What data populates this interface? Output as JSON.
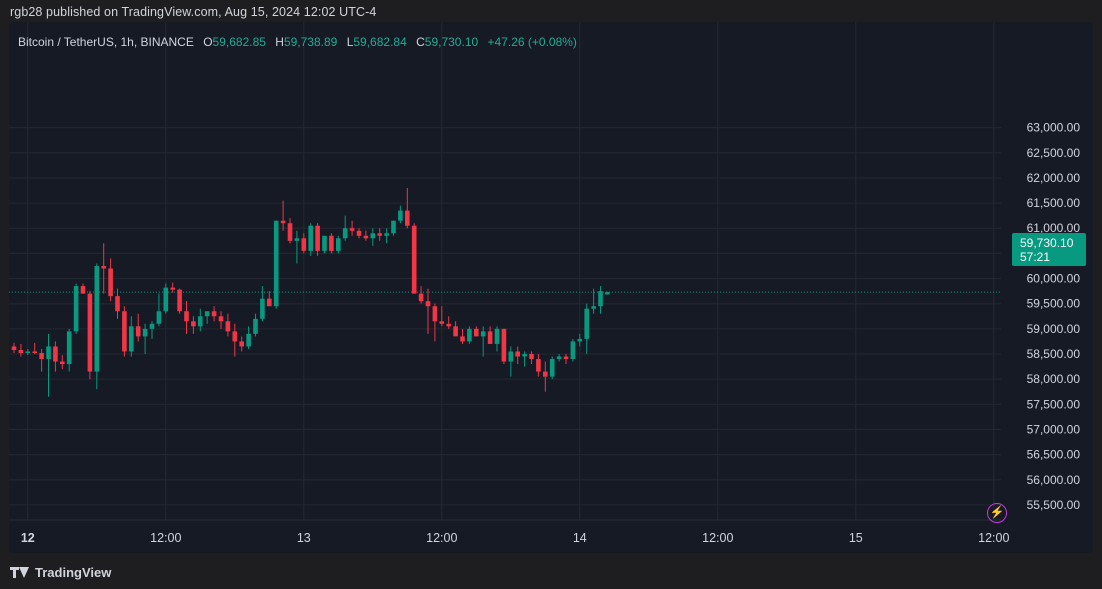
{
  "header": {
    "published": "rgb28 published on TradingView.com, Aug 15, 2024 12:02 UTC-4"
  },
  "legend": {
    "symbol": "Bitcoin / TetherUS, 1h, BINANCE",
    "o_key": "O",
    "o_val": "59,682.85",
    "h_key": "H",
    "h_val": "59,738.89",
    "l_key": "L",
    "l_val": "59,682.84",
    "c_key": "C",
    "c_val": "59,730.10",
    "change": "+47.26 (+0.08%)"
  },
  "price_tag": {
    "price": "59,730.10",
    "countdown": "57:21"
  },
  "footer": {
    "brand": "TradingView"
  },
  "colors": {
    "up": "#089981",
    "down": "#f23645",
    "background": "#161a25",
    "grid": "#242833",
    "text": "#d1d4dc"
  },
  "chart_data": {
    "type": "candlestick",
    "ylim": [
      55200,
      65100
    ],
    "last_price": 59730.1,
    "y_ticks": [
      {
        "value": 55500,
        "label": "55,500.00"
      },
      {
        "value": 56000,
        "label": "56,000.00"
      },
      {
        "value": 56500,
        "label": "56,500.00"
      },
      {
        "value": 57000,
        "label": "57,000.00"
      },
      {
        "value": 57500,
        "label": "57,500.00"
      },
      {
        "value": 58000,
        "label": "58,000.00"
      },
      {
        "value": 58500,
        "label": "58,500.00"
      },
      {
        "value": 59000,
        "label": "59,000.00"
      },
      {
        "value": 59500,
        "label": "59,500.00"
      },
      {
        "value": 60000,
        "label": "60,000.00"
      },
      {
        "value": 60500,
        "label": "60,500.00"
      },
      {
        "value": 61000,
        "label": "61,000.00"
      },
      {
        "value": 61500,
        "label": "61,500.00"
      },
      {
        "value": 62000,
        "label": "62,000.00"
      },
      {
        "value": 62500,
        "label": "62,500.00"
      },
      {
        "value": 63000,
        "label": "63,000.00"
      }
    ],
    "x_ticks": [
      {
        "index": 2,
        "label": "12",
        "bold": true
      },
      {
        "index": 22,
        "label": "12:00",
        "bold": false
      },
      {
        "index": 42,
        "label": "13",
        "bold": false
      },
      {
        "index": 62,
        "label": "12:00",
        "bold": false
      },
      {
        "index": 82,
        "label": "14",
        "bold": false
      },
      {
        "index": 102,
        "label": "12:00",
        "bold": false
      },
      {
        "index": 122,
        "label": "15",
        "bold": false
      },
      {
        "index": 142,
        "label": "12:00",
        "bold": false
      }
    ],
    "candles": [
      [
        58650,
        58720,
        58520,
        58580
      ],
      [
        58580,
        58700,
        58450,
        58520
      ],
      [
        58520,
        58600,
        58480,
        58550
      ],
      [
        58550,
        58720,
        58500,
        58520
      ],
      [
        58520,
        58600,
        58150,
        58400
      ],
      [
        58400,
        58900,
        57650,
        58650
      ],
      [
        58650,
        58750,
        58150,
        58350
      ],
      [
        58350,
        58480,
        58200,
        58300
      ],
      [
        58300,
        59000,
        58150,
        58950
      ],
      [
        58950,
        59900,
        58900,
        59850
      ],
      [
        59850,
        59900,
        59700,
        59700
      ],
      [
        59700,
        59750,
        58000,
        58150
      ],
      [
        58150,
        60300,
        57800,
        60250
      ],
      [
        60250,
        60700,
        59700,
        60200
      ],
      [
        60200,
        60400,
        59550,
        59650
      ],
      [
        59650,
        59800,
        59200,
        59350
      ],
      [
        59350,
        59450,
        58450,
        58550
      ],
      [
        58550,
        59250,
        58450,
        59050
      ],
      [
        59050,
        59300,
        58750,
        58850
      ],
      [
        58850,
        59100,
        58500,
        59000
      ],
      [
        59000,
        59150,
        58800,
        59100
      ],
      [
        59100,
        59700,
        59050,
        59350
      ],
      [
        59350,
        59900,
        59300,
        59820
      ],
      [
        59820,
        59920,
        59720,
        59780
      ],
      [
        59780,
        59800,
        59300,
        59350
      ],
      [
        59350,
        59550,
        58900,
        59150
      ],
      [
        59150,
        59250,
        58900,
        59050
      ],
      [
        59050,
        59400,
        58950,
        59250
      ],
      [
        59250,
        59350,
        59100,
        59350
      ],
      [
        59350,
        59450,
        59150,
        59250
      ],
      [
        59250,
        59350,
        59000,
        59150
      ],
      [
        59150,
        59300,
        58850,
        58950
      ],
      [
        58950,
        59100,
        58450,
        58750
      ],
      [
        58750,
        58850,
        58550,
        58650
      ],
      [
        58650,
        59050,
        58600,
        58900
      ],
      [
        58900,
        59300,
        58850,
        59200
      ],
      [
        59200,
        59850,
        59150,
        59600
      ],
      [
        59600,
        59750,
        59500,
        59450
      ],
      [
        59450,
        61150,
        59400,
        61150
      ],
      [
        61150,
        61550,
        60950,
        61100
      ],
      [
        61100,
        61200,
        60700,
        60750
      ],
      [
        60750,
        60950,
        60300,
        60800
      ],
      [
        60800,
        60900,
        60500,
        60550
      ],
      [
        60550,
        61100,
        60450,
        61050
      ],
      [
        61050,
        61100,
        60450,
        60550
      ],
      [
        60550,
        60800,
        60500,
        60850
      ],
      [
        60850,
        60900,
        60500,
        60550
      ],
      [
        60550,
        60850,
        60500,
        60800
      ],
      [
        60800,
        61250,
        60750,
        61000
      ],
      [
        61000,
        61150,
        60850,
        60950
      ],
      [
        60950,
        61000,
        60800,
        60850
      ],
      [
        60850,
        60950,
        60750,
        60800
      ],
      [
        60800,
        61000,
        60650,
        60900
      ],
      [
        60900,
        61000,
        60750,
        60850
      ],
      [
        60850,
        61000,
        60700,
        60900
      ],
      [
        60900,
        61150,
        60850,
        61150
      ],
      [
        61150,
        61450,
        61100,
        61350
      ],
      [
        61350,
        61800,
        61000,
        61050
      ],
      [
        61050,
        61100,
        59700,
        59700
      ],
      [
        59700,
        59850,
        59500,
        59550
      ],
      [
        59550,
        59800,
        58900,
        59450
      ],
      [
        59450,
        59500,
        58750,
        59150
      ],
      [
        59150,
        59450,
        59050,
        59100
      ],
      [
        59100,
        59250,
        59000,
        59050
      ],
      [
        59050,
        59150,
        58900,
        58850
      ],
      [
        58850,
        59000,
        58700,
        58750
      ],
      [
        58750,
        59050,
        58700,
        59000
      ],
      [
        59000,
        59050,
        58850,
        58850
      ],
      [
        58850,
        59050,
        58450,
        58950
      ],
      [
        58950,
        59050,
        58700,
        58700
      ],
      [
        58700,
        59050,
        58550,
        59000
      ],
      [
        59000,
        59000,
        58300,
        58350
      ],
      [
        58350,
        58650,
        58050,
        58550
      ],
      [
        58550,
        58650,
        58300,
        58450
      ],
      [
        58450,
        58550,
        58250,
        58500
      ],
      [
        58500,
        58550,
        58300,
        58400
      ],
      [
        58400,
        58500,
        58050,
        58150
      ],
      [
        58150,
        58350,
        57750,
        58050
      ],
      [
        58050,
        58450,
        58000,
        58400
      ],
      [
        58400,
        58500,
        58350,
        58450
      ],
      [
        58450,
        58500,
        58300,
        58400
      ],
      [
        58400,
        58800,
        58350,
        58750
      ],
      [
        58750,
        58900,
        58650,
        58800
      ],
      [
        58800,
        59500,
        58500,
        59400
      ],
      [
        59400,
        59800,
        59300,
        59450
      ],
      [
        59450,
        59850,
        59300,
        59750
      ],
      [
        59682.85,
        59738.89,
        59682.84,
        59730.1
      ]
    ]
  }
}
